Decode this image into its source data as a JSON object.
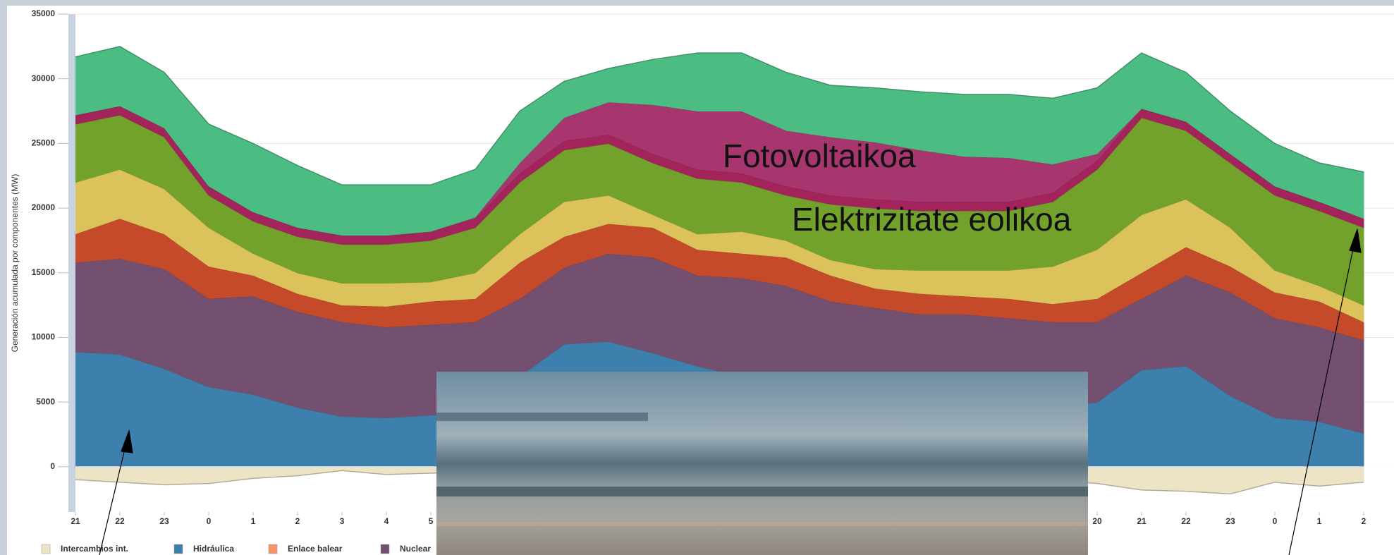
{
  "chart_data": {
    "type": "area",
    "stacked": true,
    "grid": true,
    "y_label": "Generación acumulada por componentes (MW)",
    "annotations": [
      "Fotovoltaikoa",
      "Elektrizitate eolikoa"
    ],
    "x": [
      0,
      1,
      2,
      3,
      4,
      5,
      6,
      7,
      8,
      9,
      10,
      11,
      12,
      13,
      14,
      15,
      16,
      17,
      18,
      19,
      20,
      21,
      22,
      23,
      24,
      25,
      26,
      27,
      28,
      29
    ],
    "xlim": [
      0,
      29.7
    ],
    "xticks": [
      {
        "value": 0,
        "label": "21"
      },
      {
        "value": 1,
        "label": "22"
      },
      {
        "value": 2,
        "label": "23"
      },
      {
        "value": 3,
        "label": "0"
      },
      {
        "value": 4,
        "label": "1"
      },
      {
        "value": 5,
        "label": "2"
      },
      {
        "value": 6,
        "label": "3"
      },
      {
        "value": 7,
        "label": "4"
      },
      {
        "value": 8,
        "label": "5"
      },
      {
        "value": 23,
        "label": "20"
      },
      {
        "value": 24,
        "label": "21"
      },
      {
        "value": 25,
        "label": "22"
      },
      {
        "value": 26,
        "label": "23"
      },
      {
        "value": 27,
        "label": "0"
      },
      {
        "value": 28,
        "label": "1"
      },
      {
        "value": 29,
        "label": "2"
      }
    ],
    "ylim": [
      -3500,
      35000
    ],
    "yticks": [
      0,
      5000,
      10000,
      15000,
      20000,
      25000,
      30000,
      35000
    ],
    "series": [
      {
        "name": "Intercambios int.",
        "color": "#ece4c4",
        "values": [
          -1000,
          -1200,
          -1400,
          -1300,
          -900,
          -700,
          -300,
          -600,
          -500,
          -400,
          -800,
          -1000,
          -1000,
          -1000,
          -1000,
          -1000,
          -1000,
          -1000,
          -1000,
          -1000,
          -1000,
          -1000,
          -1000,
          -1300,
          -1800,
          -1900,
          -2100,
          -1200,
          -1500,
          -1200
        ]
      },
      {
        "name": "Hidráulica",
        "color": "#3d7fad",
        "values": [
          8900,
          8700,
          7600,
          6200,
          5600,
          4600,
          3900,
          3800,
          4000,
          4500,
          7000,
          9500,
          9700,
          8800,
          7800,
          7000,
          6000,
          5500,
          5000,
          4800,
          4700,
          4600,
          4500,
          5000,
          7500,
          7800,
          5500,
          3800,
          3500,
          2600
        ]
      },
      {
        "name": "Enlace balear",
        "color": "#f4956a",
        "values": [
          0,
          0,
          0,
          0,
          0,
          0,
          0,
          0,
          0,
          0,
          0,
          0,
          0,
          0,
          0,
          0,
          0,
          0,
          0,
          0,
          0,
          0,
          0,
          0,
          0,
          0,
          0,
          0,
          0,
          0
        ]
      },
      {
        "name": "Nuclear",
        "color": "#735070",
        "values": [
          6900,
          7400,
          7700,
          6800,
          7600,
          7400,
          7300,
          7000,
          7000,
          6700,
          6000,
          5900,
          6800,
          7400,
          7000,
          7600,
          8000,
          7300,
          7300,
          7000,
          7100,
          6900,
          6700,
          6200,
          5500,
          7000,
          8000,
          7700,
          7300,
          7200
        ]
      },
      {
        "color": "#c44a2a",
        "values": [
          2200,
          3100,
          2700,
          2500,
          1600,
          1400,
          1300,
          1600,
          1800,
          1800,
          2800,
          2400,
          2300,
          2300,
          2000,
          1900,
          2200,
          2000,
          1500,
          1600,
          1400,
          1500,
          1400,
          1800,
          2000,
          2200,
          2000,
          2000,
          2000,
          1400
        ]
      },
      {
        "color": "#dcc25a",
        "values": [
          4000,
          3800,
          3500,
          3000,
          1700,
          1600,
          1700,
          1800,
          1500,
          2000,
          2200,
          2700,
          2200,
          1000,
          1200,
          1700,
          1300,
          1200,
          1500,
          1800,
          2000,
          2200,
          2900,
          3800,
          4500,
          3700,
          3000,
          1700,
          1200,
          1300
        ]
      },
      {
        "color": "#72a12c",
        "values": [
          4500,
          4200,
          4000,
          2500,
          2500,
          2800,
          3000,
          3000,
          3200,
          3500,
          4000,
          4000,
          4000,
          4000,
          4300,
          3800,
          3500,
          4300,
          4700,
          4600,
          4600,
          4600,
          5000,
          6200,
          7500,
          5300,
          5000,
          5800,
          5800,
          6000
        ]
      },
      {
        "color": "#a3245a",
        "values": [
          700,
          700,
          700,
          700,
          700,
          700,
          700,
          700,
          700,
          700,
          700,
          700,
          700,
          700,
          700,
          700,
          700,
          700,
          700,
          700,
          700,
          700,
          700,
          700,
          700,
          700,
          700,
          700,
          700,
          700
        ]
      },
      {
        "color": "#a8366e",
        "values": [
          0,
          0,
          0,
          0,
          0,
          0,
          0,
          0,
          0,
          100,
          800,
          1800,
          2500,
          3800,
          4500,
          4800,
          4300,
          4500,
          4400,
          4000,
          3500,
          3400,
          2200,
          500,
          0,
          0,
          0,
          0,
          0,
          0
        ]
      },
      {
        "color": "#4bbd82",
        "values": [
          4500,
          4600,
          4300,
          4800,
          5300,
          4800,
          3900,
          3900,
          3600,
          3700,
          4000,
          2800,
          2600,
          3500,
          4500,
          4500,
          4500,
          4000,
          4200,
          4500,
          4800,
          4900,
          5100,
          5100,
          4300,
          3800,
          3300,
          3300,
          3000,
          3600
        ]
      }
    ]
  }
}
